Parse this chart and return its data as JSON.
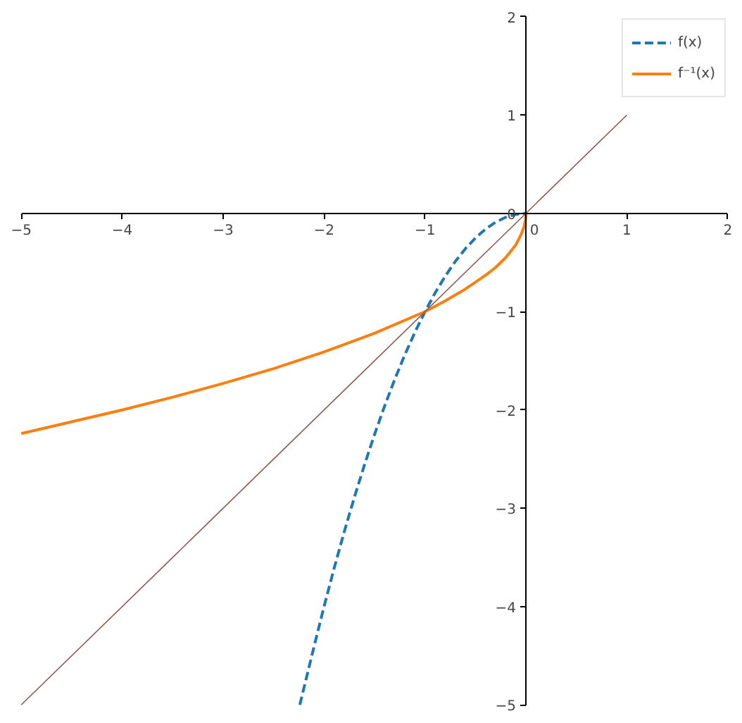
{
  "chart_data": {
    "type": "line",
    "xlim": [
      -5,
      2
    ],
    "ylim": [
      -5,
      2
    ],
    "xticks": [
      {
        "value": -5,
        "label": "−5"
      },
      {
        "value": -4,
        "label": "−4"
      },
      {
        "value": -3,
        "label": "−3"
      },
      {
        "value": -2,
        "label": "−2"
      },
      {
        "value": -1,
        "label": "−1"
      },
      0,
      1,
      2
    ],
    "yticks": [
      {
        "value": -5,
        "label": "−5"
      },
      {
        "value": -4,
        "label": "−4"
      },
      {
        "value": -3,
        "label": "−3"
      },
      {
        "value": -2,
        "label": "−2"
      },
      {
        "value": -1,
        "label": "−1"
      },
      0,
      1,
      2
    ],
    "grid": false,
    "legend": "top right",
    "marker": "none",
    "series": [
      {
        "name": "f(x)",
        "color": "#1f77b4",
        "line_style": "dashed",
        "x": [
          -2.24,
          -2.1,
          -2.0,
          -1.9,
          -1.8,
          -1.7,
          -1.6,
          -1.5,
          -1.4,
          -1.3,
          -1.2,
          -1.1,
          -1.0,
          -0.9,
          -0.8,
          -0.7,
          -0.6,
          -0.5,
          -0.4,
          -0.3,
          -0.2,
          -0.1,
          0
        ],
        "values": [
          -5.0,
          -4.41,
          -4.0,
          -3.61,
          -3.24,
          -2.89,
          -2.56,
          -2.25,
          -1.96,
          -1.69,
          -1.44,
          -1.21,
          -1.0,
          -0.81,
          -0.64,
          -0.49,
          -0.36,
          -0.25,
          -0.16,
          -0.09,
          -0.04,
          -0.01,
          0
        ]
      },
      {
        "name": "f⁻¹(x)",
        "color": "#ff7f0e",
        "line_style": "solid",
        "x": [
          -5,
          -4.5,
          -4,
          -3.5,
          -3,
          -2.5,
          -2,
          -1.5,
          -1,
          -0.8,
          -0.6,
          -0.4,
          -0.3,
          -0.2,
          -0.1,
          -0.05,
          -0.02,
          -0.005,
          0
        ],
        "values": [
          -2.24,
          -2.12,
          -2.0,
          -1.87,
          -1.73,
          -1.58,
          -1.41,
          -1.22,
          -1.0,
          -0.89,
          -0.77,
          -0.63,
          -0.55,
          -0.45,
          -0.32,
          -0.22,
          -0.14,
          -0.07,
          0
        ]
      },
      {
        "color": "#8c564b",
        "line_style": "solid",
        "x": [
          -5,
          1
        ],
        "values": [
          -5,
          1
        ]
      }
    ]
  }
}
